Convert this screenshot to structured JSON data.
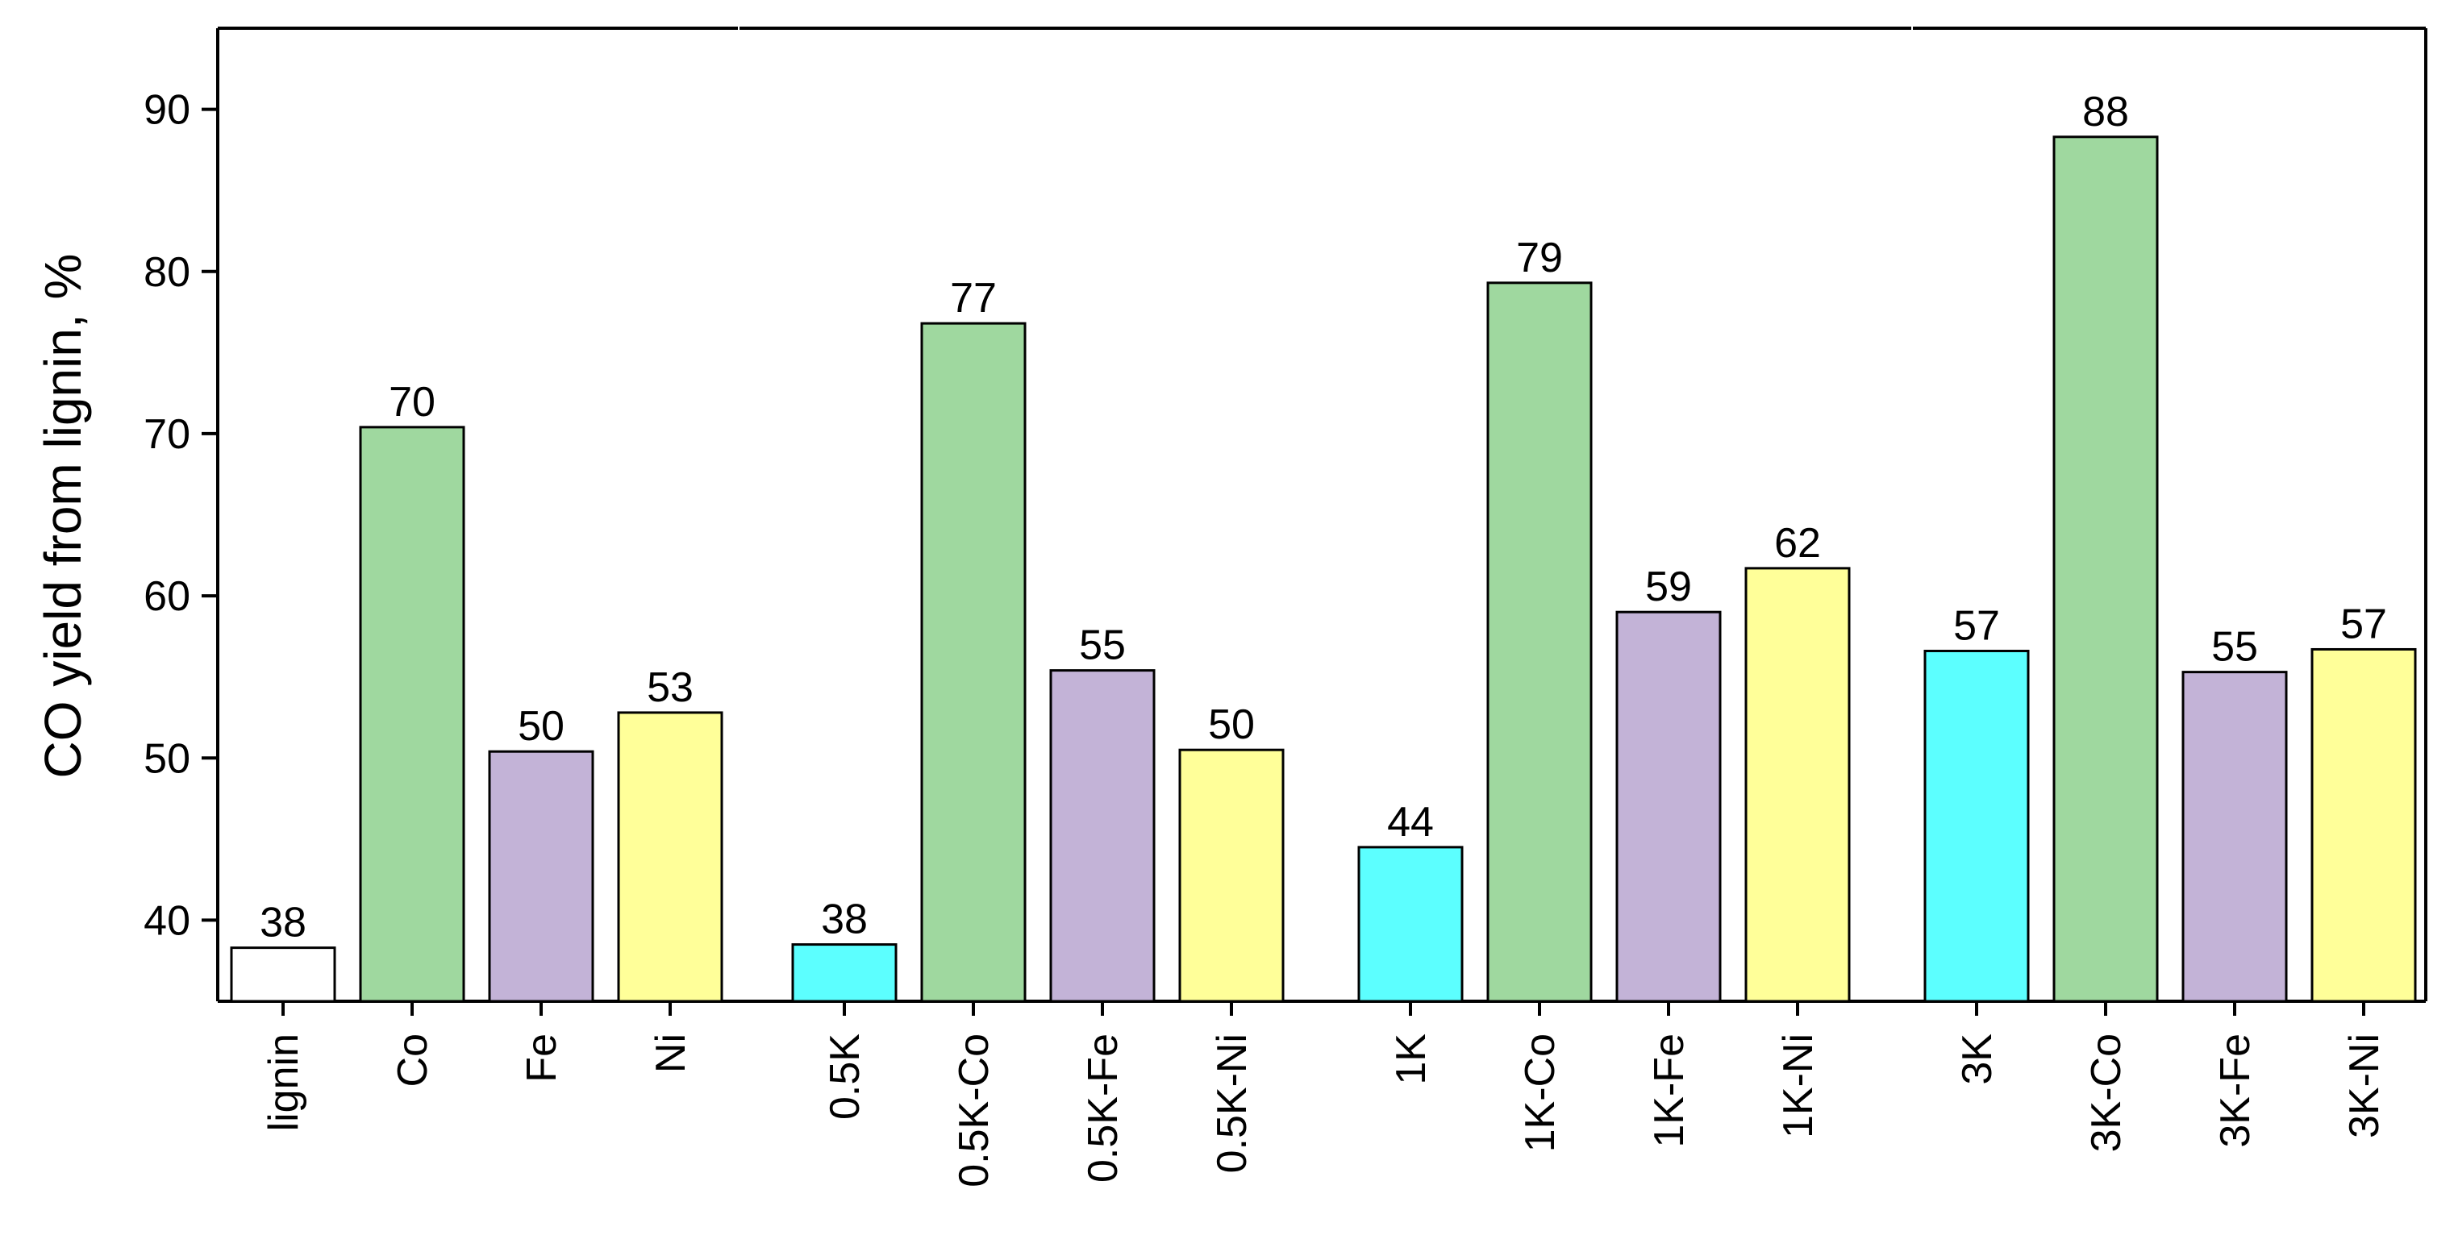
{
  "chart_data": {
    "type": "bar",
    "ylabel": "CO yield from lignin, %",
    "xlabel": "",
    "title": "",
    "ylim": [
      35,
      95
    ],
    "yticks": [
      40,
      50,
      60,
      70,
      80,
      90
    ],
    "grid": false,
    "legend": "none",
    "groups": [
      {
        "bars": [
          {
            "category": "lignin",
            "value": 38.3,
            "label": "38",
            "color": "#ffffff"
          },
          {
            "category": "Co",
            "value": 70.4,
            "label": "70",
            "color": "#9fd89f"
          },
          {
            "category": "Fe",
            "value": 50.4,
            "label": "50",
            "color": "#c3b3d7"
          },
          {
            "category": "Ni",
            "value": 52.8,
            "label": "53",
            "color": "#ffff99"
          }
        ]
      },
      {
        "bars": [
          {
            "category": "0.5K",
            "value": 38.5,
            "label": "38",
            "color": "#5cffff"
          },
          {
            "category": "0.5K-Co",
            "value": 76.8,
            "label": "77",
            "color": "#9fd89f"
          },
          {
            "category": "0.5K-Fe",
            "value": 55.4,
            "label": "55",
            "color": "#c3b3d7"
          },
          {
            "category": "0.5K-Ni",
            "value": 50.5,
            "label": "50",
            "color": "#ffff99"
          }
        ]
      },
      {
        "bars": [
          {
            "category": "1K",
            "value": 44.5,
            "label": "44",
            "color": "#5cffff"
          },
          {
            "category": "1K-Co",
            "value": 79.3,
            "label": "79",
            "color": "#9fd89f"
          },
          {
            "category": "1K-Fe",
            "value": 59.0,
            "label": "59",
            "color": "#c3b3d7"
          },
          {
            "category": "1K-Ni",
            "value": 61.7,
            "label": "62",
            "color": "#ffff99"
          }
        ]
      },
      {
        "bars": [
          {
            "category": "3K",
            "value": 56.6,
            "label": "57",
            "color": "#5cffff"
          },
          {
            "category": "3K-Co",
            "value": 88.3,
            "label": "88",
            "color": "#9fd89f"
          },
          {
            "category": "3K-Fe",
            "value": 55.3,
            "label": "55",
            "color": "#c3b3d7"
          },
          {
            "category": "3K-Ni",
            "value": 56.7,
            "label": "57",
            "color": "#ffff99"
          }
        ]
      }
    ]
  }
}
